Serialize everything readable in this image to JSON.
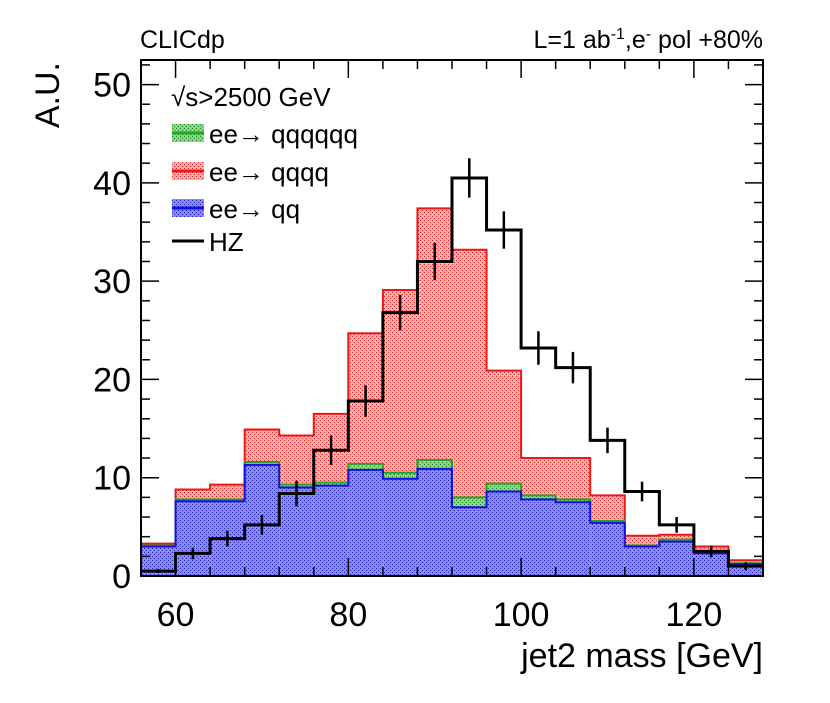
{
  "header": {
    "experiment": "CLICdp",
    "lumi_prefix": "L=1 ab",
    "lumi_exp": "-1",
    "lumi_mid": ",e",
    "lumi_sup": "-",
    "lumi_suffix": " pol +80%"
  },
  "legend": {
    "energy_sym": "√s",
    "energy_text": ">2500 GeV",
    "entries": [
      "ee→ qqqqqq",
      "ee→ qqqq",
      "ee→ qq",
      "HZ"
    ]
  },
  "colors": {
    "qqqqqq": "#2ca02c",
    "qqqq": "#e81818",
    "qq": "#1010e0",
    "hz": "#000000",
    "qqqqqq_fill": "#74c474",
    "qqqq_fill": "#ef9a9a",
    "qq_fill": "#7474e4"
  },
  "chart_data": {
    "type": "histogram",
    "title": "",
    "xlabel": "jet2 mass [GeV]",
    "ylabel": "A.U.",
    "xlim": [
      56,
      128
    ],
    "ylim": [
      0,
      52.5
    ],
    "x_ticks": [
      60,
      80,
      100,
      120
    ],
    "y_ticks": [
      0,
      10,
      20,
      30,
      40,
      50
    ],
    "bin_edges": [
      56,
      60,
      64,
      68,
      72,
      76,
      80,
      84,
      88,
      92,
      96,
      100,
      104,
      108,
      112,
      116,
      120,
      124,
      128
    ],
    "stack": [
      {
        "name": "ee→ qq",
        "values": [
          3.0,
          7.6,
          7.6,
          11.3,
          9.0,
          9.2,
          10.8,
          9.9,
          10.9,
          7.0,
          8.6,
          7.8,
          7.5,
          5.4,
          3.0,
          3.5,
          2.3,
          1.2
        ]
      },
      {
        "name": "ee→ qqqqqq",
        "values": [
          0.1,
          0.2,
          0.2,
          0.3,
          0.3,
          0.3,
          0.6,
          0.6,
          0.9,
          1.0,
          0.8,
          0.4,
          0.3,
          0.2,
          0.1,
          0.2,
          0.1,
          0.1
        ]
      },
      {
        "name": "ee→ qqqq",
        "values": [
          0.2,
          1.0,
          1.5,
          3.3,
          5.0,
          7.0,
          13.3,
          18.6,
          25.6,
          25.2,
          11.5,
          3.8,
          4.2,
          2.6,
          1.0,
          0.5,
          0.6,
          0.3
        ]
      }
    ],
    "stack_totals": [
      3.3,
      8.8,
      9.3,
      14.9,
      14.3,
      16.5,
      24.7,
      29.1,
      37.4,
      33.2,
      20.9,
      12.0,
      12.0,
      8.2,
      4.1,
      4.2,
      3.0,
      1.6
    ],
    "hz": {
      "name": "HZ",
      "values": [
        0.5,
        2.3,
        3.8,
        5.2,
        8.4,
        12.8,
        17.8,
        26.8,
        32.0,
        40.5,
        35.2,
        23.2,
        21.2,
        13.8,
        8.6,
        5.2,
        2.5,
        1.0
      ],
      "errors": [
        0.2,
        0.6,
        0.8,
        1.0,
        1.3,
        1.5,
        1.6,
        1.8,
        1.9,
        2.0,
        1.9,
        1.7,
        1.6,
        1.3,
        1.0,
        0.8,
        0.6,
        0.4
      ]
    }
  }
}
